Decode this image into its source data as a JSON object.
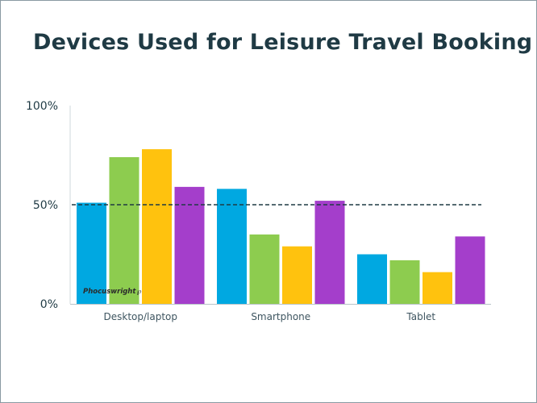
{
  "slide": {
    "title": "Devices Used for Leisure Travel Booking",
    "brand": "Phocuswright"
  },
  "chart_data": {
    "type": "bar",
    "title": "Devices Used for Leisure Travel Booking",
    "categories": [
      "Desktop/laptop",
      "Smartphone",
      "Tablet"
    ],
    "series": [
      {
        "values": [
          51,
          58,
          25
        ],
        "color": "#00a8e1"
      },
      {
        "values": [
          74,
          35,
          22
        ],
        "color": "#8dcc4f"
      },
      {
        "values": [
          78,
          29,
          16
        ],
        "color": "#ffc20e"
      },
      {
        "values": [
          59,
          52,
          34
        ],
        "color": "#a43ecb"
      }
    ],
    "ylim": [
      0,
      100
    ],
    "yticks": [
      "0%",
      "50%",
      "100%"
    ],
    "ytick_values": [
      0,
      50,
      100
    ],
    "reference_line": 50,
    "grid": false,
    "legend": "none"
  }
}
